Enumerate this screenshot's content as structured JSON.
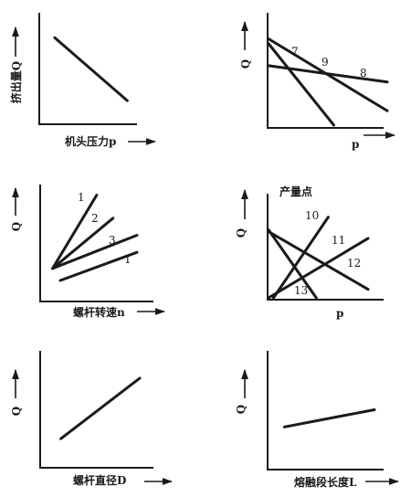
{
  "chart_data": [
    {
      "type": "line",
      "xlabel": "机头压力p",
      "ylabel": "挤出量Q",
      "series": [
        {
          "name": "",
          "points": [
            [
              0.15,
              0.9
            ],
            [
              0.9,
              0.15
            ]
          ]
        }
      ]
    },
    {
      "type": "line",
      "xlabel": "p",
      "ylabel": "Q",
      "series": [
        {
          "name": "7",
          "points": [
            [
              0.0,
              0.9
            ],
            [
              1.0,
              0.15
            ]
          ]
        },
        {
          "name": "8",
          "points": [
            [
              0.0,
              0.62
            ],
            [
              1.0,
              0.45
            ]
          ]
        },
        {
          "name": "9",
          "points": [
            [
              0.0,
              0.85
            ],
            [
              0.55,
              0.0
            ]
          ]
        }
      ]
    },
    {
      "type": "line",
      "xlabel": "螺杆转速n",
      "ylabel": "Q",
      "series": [
        {
          "name": "1",
          "points": [
            [
              0.12,
              0.22
            ],
            [
              0.58,
              0.95
            ]
          ]
        },
        {
          "name": "2",
          "points": [
            [
              0.12,
              0.22
            ],
            [
              0.75,
              0.72
            ]
          ]
        },
        {
          "name": "3",
          "points": [
            [
              0.12,
              0.22
            ],
            [
              1.0,
              0.55
            ]
          ]
        },
        {
          "name": "1",
          "points": [
            [
              0.2,
              0.1
            ],
            [
              1.0,
              0.38
            ]
          ]
        }
      ]
    },
    {
      "type": "line",
      "title": "产量点",
      "xlabel": "p",
      "ylabel": "Q",
      "series": [
        {
          "name": "10",
          "points": [
            [
              0.05,
              0.0
            ],
            [
              0.6,
              0.95
            ]
          ]
        },
        {
          "name": "11",
          "points": [
            [
              0.0,
              0.0
            ],
            [
              1.0,
              0.7
            ]
          ]
        },
        {
          "name": "12",
          "points": [
            [
              0.0,
              0.78
            ],
            [
              1.0,
              0.1
            ]
          ]
        },
        {
          "name": "13",
          "points": [
            [
              0.0,
              0.8
            ],
            [
              0.48,
              0.0
            ]
          ]
        }
      ]
    },
    {
      "type": "line",
      "xlabel": "螺杆直径D",
      "ylabel": "Q",
      "series": [
        {
          "name": "",
          "points": [
            [
              0.2,
              0.1
            ],
            [
              1.0,
              0.95
            ]
          ]
        }
      ]
    },
    {
      "type": "line",
      "xlabel": "熔融段长度L",
      "ylabel": "Q",
      "series": [
        {
          "name": "",
          "points": [
            [
              0.15,
              0.1
            ],
            [
              1.0,
              0.5
            ]
          ]
        }
      ]
    }
  ]
}
